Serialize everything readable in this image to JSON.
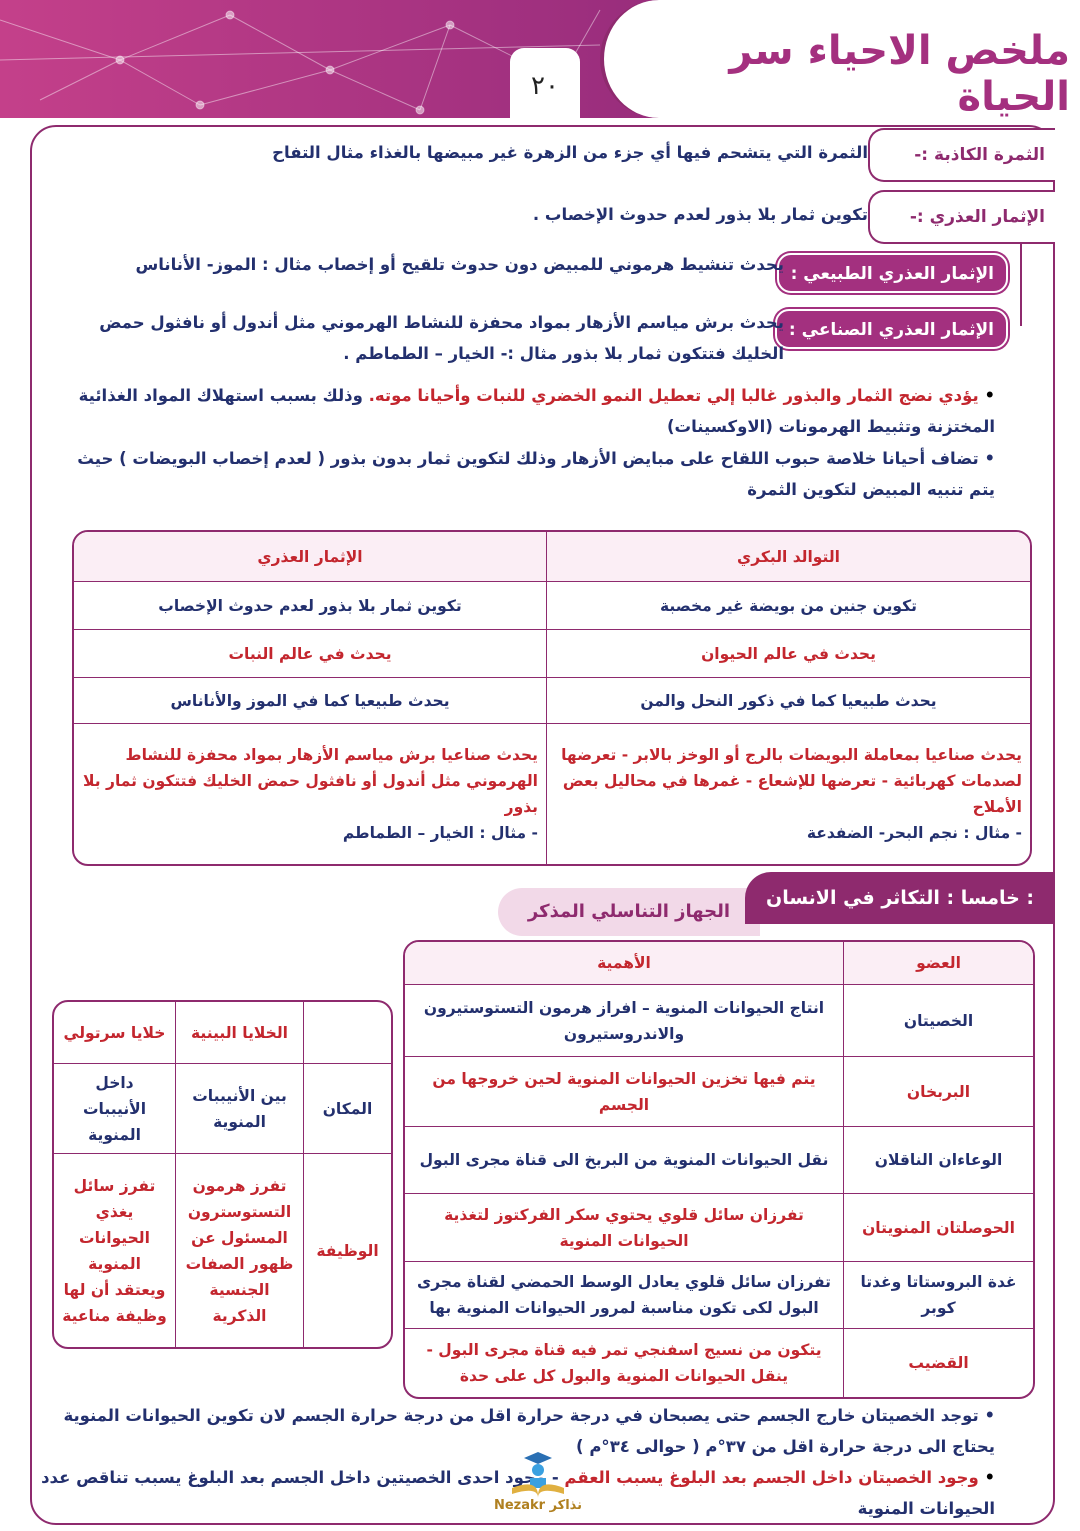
{
  "header": {
    "title": "ملخص الاحياء سر الحياة",
    "page_number": "٢٠"
  },
  "definitions": [
    {
      "term": "الثمرة الكاذبة :-",
      "text": "الثمرة التي يتشحم فيها أي جزء من الزهرة غير مبيضها بالغذاء مثال التفاح"
    },
    {
      "term": "الإثمار العذري :-",
      "text": "تكوين ثمار بلا بذور لعدم حدوث الإخصاب ."
    },
    {
      "term": "الإثمار العذري الطبيعي :",
      "text": "يحدث تنشيط هرموني للمبيض دون حدوث تلقيح أو إخصاب مثال : الموز- الأناناس"
    },
    {
      "term": "الإثمار العذري الصناعي :",
      "text": "يحدث برش مياسم الأزهار بمواد محفزة للنشاط الهرموني مثل أندول أو نافثول حمض الخليك فتتكون ثمار بلا بذور مثال :- الخيار – الطماطم ."
    }
  ],
  "notes": [
    {
      "red": "يؤدي نضج الثمار والبذور غالبا إلي تعطيل النمو الخضري للنبات وأحيانا موته.",
      "navy": " وذلك بسبب استهلاك المواد الغذائية المختزنة وتثبيط الهرمونات (الاوكسينات)"
    },
    {
      "red": "",
      "navy": "تضاف أحيانا خلاصة حبوب اللقاح على مبايض الأزهار وذلك لتكوين ثمار بدون بذور ( لعدم إخصاب البويضات ) حيث يتم تنبيه المبيض لتكوين الثمرة"
    }
  ],
  "comparison_table": {
    "headers": [
      "التوالد البكري",
      "الإثمار العذري"
    ],
    "rows": [
      [
        "تكوين جنين من بويضة غير مخصبة",
        "تكوين ثمار بلا بذور لعدم حدوث الإخصاب"
      ],
      [
        "يحدث في عالم الحيوان",
        "يحدث في عالم النبات"
      ],
      [
        "يحدث طبيعيا كما في ذكور النحل والمن",
        "يحدث طبيعيا كما في الموز والأناناس"
      ]
    ],
    "artificial": [
      {
        "text": "يحدث صناعيا بمعاملة البويضات بالرج أو الوخز بالابر - تعرضها لصدمات كهربائية - تعرضها للإشعاع - غمرها في محاليل بعض الأملاح",
        "example": "- مثال : نجم البحر- الضفدعة"
      },
      {
        "text": "يحدث صناعيا برش مياسم الأزهار بمواد محفزة للنشاط الهرموني مثل أندول أو نافثول حمض الخليك فتتكون ثمار بلا بذور",
        "example": "- مثال : الخيار – الطماطم"
      }
    ]
  },
  "section": {
    "heading": "خامسا : التكاثر في الانسان :",
    "subheading": "الجهاز التناسلي المذكر"
  },
  "organs_table": {
    "headers": [
      "العضو",
      "الأهمية"
    ],
    "rows": [
      {
        "organ": "الخصيتان",
        "role": "انتاج الحيوانات المنوية – افراز هرمون التستوستيرون والاندروستيرون",
        "color": "navy"
      },
      {
        "organ": "البربخان",
        "role": "يتم فيها تخزين الحيوانات المنوية لحين خروجها من الجسم",
        "color": "red"
      },
      {
        "organ": "الوعاءان الناقلان",
        "role": "نقل الحيوانات المنوية من البربخ الى قناة مجرى البول",
        "color": "navy"
      },
      {
        "organ": "الحوصلتان المنويتان",
        "role": "تفرزان سائل قلوي يحتوي سكر الفركتوز لتغذية الحيوانات المنوية",
        "color": "red"
      },
      {
        "organ": "غدة البروستاتا وغدتا كوبر",
        "role": "تفرزان سائل قلوي يعادل الوسط الحمضي لقناة مجرى البول لكى تكون مناسبة لمرور الحيوانات المنوية بها",
        "color": "navy"
      },
      {
        "organ": "القضيب",
        "role": "يتكون من نسيج اسفنجي تمر فيه قناة مجرى البول - ينقل الحيوانات المنوية والبول كل على حدة",
        "color": "red"
      }
    ]
  },
  "cells_table": {
    "headers": [
      "",
      "الخلايا البينية",
      "خلايا سرتولي"
    ],
    "rows": [
      [
        "المكان",
        "بين الأنيببات المنوية",
        "داخل الأنيببات المنوية"
      ],
      [
        "الوظيفة",
        "تفرز هرمون التستوسترون المسئول عن ظهور الصفات الجنسية الذكرية",
        "تفرز سائل يغذي الحيوانات المنوية ويعتقد أن لها وظيفة مناعية"
      ]
    ]
  },
  "bottom_notes": [
    {
      "red": "",
      "navy": "توجد الخصيتان خارج الجسم حتى يصبحان في درجة حرارة اقل من درجة حرارة الجسم لان تكوين الحيوانات المنوية يحتاج الى درجة حرارة اقل من ٣٧°م ( حوالى ٣٤°م )"
    },
    {
      "red": "وجود الخصيتان داخل الجسم بعد البلوغ يسبب العقم",
      "navy": " - وجود احدى الخصيتين داخل الجسم بعد البلوغ يسبب تناقص عدد الحيوانات المنوية"
    }
  ],
  "logo": {
    "text": "Nezakr نذاكر"
  },
  "colors": {
    "brand": "#8e2a6e",
    "navy": "#23306e",
    "red": "#c3262e"
  }
}
